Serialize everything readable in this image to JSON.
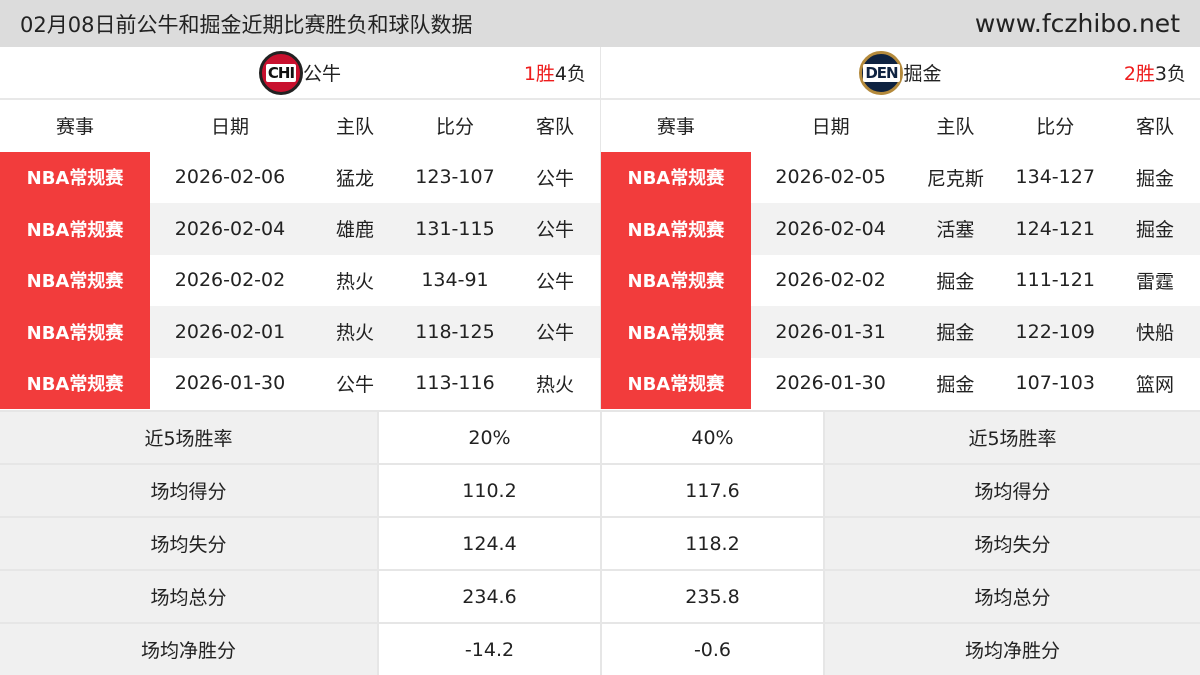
{
  "title": "02月08日前公牛和掘金近期比赛胜负和球队数据",
  "site": "www.fczhibo.net",
  "colors": {
    "badge": "#f23c3c",
    "win": "#ee1c1c"
  },
  "headers": [
    "赛事",
    "日期",
    "主队",
    "比分",
    "客队"
  ],
  "teams": [
    {
      "logo": "CHI",
      "name": "公牛",
      "wins": "1胜",
      "losses": "4负",
      "games": [
        [
          "NBA常规赛",
          "2026-02-06",
          "猛龙",
          "123-107",
          "公牛"
        ],
        [
          "NBA常规赛",
          "2026-02-04",
          "雄鹿",
          "131-115",
          "公牛"
        ],
        [
          "NBA常规赛",
          "2026-02-02",
          "热火",
          "134-91",
          "公牛"
        ],
        [
          "NBA常规赛",
          "2026-02-01",
          "热火",
          "118-125",
          "公牛"
        ],
        [
          "NBA常规赛",
          "2026-01-30",
          "公牛",
          "113-116",
          "热火"
        ]
      ]
    },
    {
      "logo": "DEN",
      "name": "掘金",
      "wins": "2胜",
      "losses": "3负",
      "games": [
        [
          "NBA常规赛",
          "2026-02-05",
          "尼克斯",
          "134-127",
          "掘金"
        ],
        [
          "NBA常规赛",
          "2026-02-04",
          "活塞",
          "124-121",
          "掘金"
        ],
        [
          "NBA常规赛",
          "2026-02-02",
          "掘金",
          "111-121",
          "雷霆"
        ],
        [
          "NBA常规赛",
          "2026-01-31",
          "掘金",
          "122-109",
          "快船"
        ],
        [
          "NBA常规赛",
          "2026-01-30",
          "掘金",
          "107-103",
          "篮网"
        ]
      ]
    }
  ],
  "stats": [
    {
      "label": "近5场胜率",
      "left": "20%",
      "right": "40%"
    },
    {
      "label": "场均得分",
      "left": "110.2",
      "right": "117.6"
    },
    {
      "label": "场均失分",
      "left": "124.4",
      "right": "118.2"
    },
    {
      "label": "场均总分",
      "left": "234.6",
      "right": "235.8"
    },
    {
      "label": "场均净胜分",
      "left": "-14.2",
      "right": "-0.6"
    }
  ]
}
